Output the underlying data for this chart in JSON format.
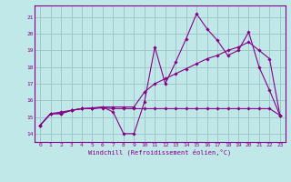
{
  "background_color": "#c0e8e8",
  "grid_color": "#a0c8c8",
  "line_color": "#880088",
  "spine_color": "#880088",
  "title": "Windchill (Refroidissement éolien,°C)",
  "xlim": [
    -0.5,
    23.5
  ],
  "ylim": [
    13.5,
    21.7
  ],
  "yticks": [
    14,
    15,
    16,
    17,
    18,
    19,
    20,
    21
  ],
  "xticks": [
    0,
    1,
    2,
    3,
    4,
    5,
    6,
    7,
    8,
    9,
    10,
    11,
    12,
    13,
    14,
    15,
    16,
    17,
    18,
    19,
    20,
    21,
    22,
    23
  ],
  "series": [
    [
      14.5,
      15.2,
      15.2,
      15.4,
      15.5,
      15.5,
      15.6,
      15.3,
      14.0,
      14.0,
      15.9,
      19.2,
      17.0,
      18.3,
      19.7,
      21.2,
      20.3,
      19.6,
      18.7,
      19.0,
      20.1,
      18.0,
      16.6,
      15.1
    ],
    [
      14.5,
      15.2,
      15.3,
      15.4,
      15.5,
      15.5,
      15.55,
      15.5,
      15.5,
      15.5,
      15.5,
      15.5,
      15.5,
      15.5,
      15.5,
      15.5,
      15.5,
      15.5,
      15.5,
      15.5,
      15.5,
      15.5,
      15.5,
      15.1
    ],
    [
      14.5,
      15.2,
      15.2,
      15.4,
      15.5,
      15.55,
      15.6,
      15.6,
      15.6,
      15.6,
      16.5,
      17.0,
      17.3,
      17.6,
      17.9,
      18.2,
      18.5,
      18.7,
      19.0,
      19.2,
      19.5,
      19.0,
      18.5,
      15.1
    ]
  ]
}
